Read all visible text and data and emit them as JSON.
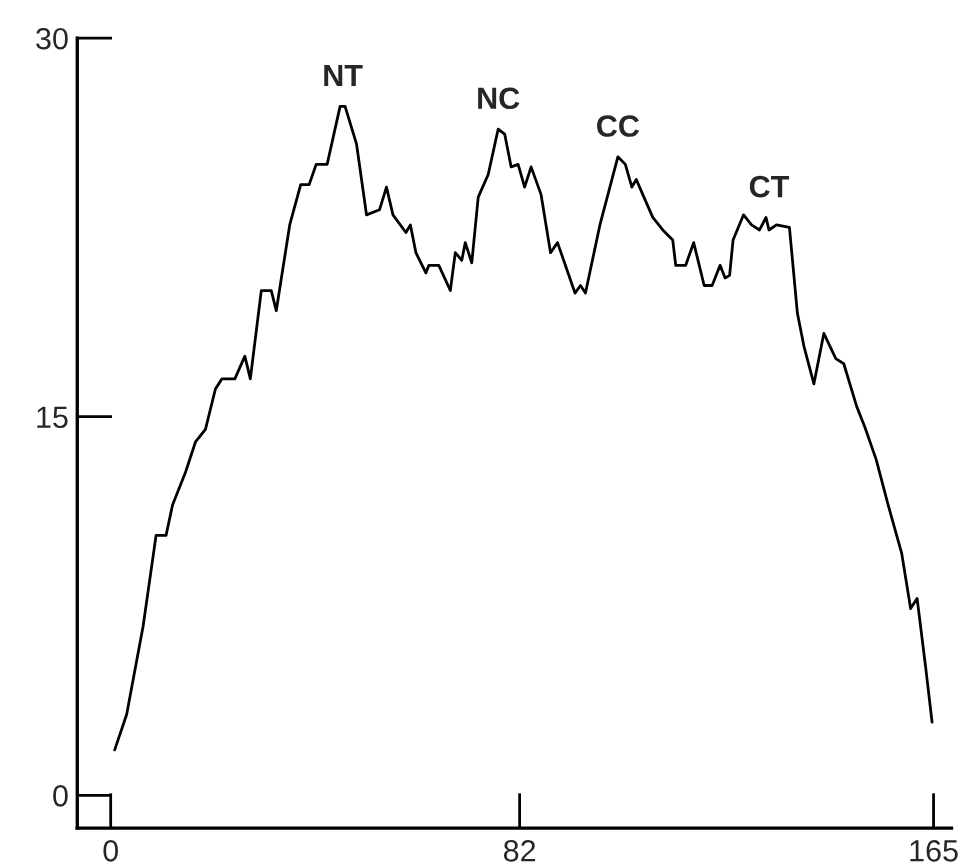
{
  "chart_data": {
    "type": "line",
    "x": [
      0.8,
      3.2,
      6.5,
      9.1,
      11.1,
      12.4,
      15,
      17,
      19,
      21,
      22.3,
      24.9,
      26.9,
      28,
      30.2,
      32.2,
      33.2,
      35.9,
      38.1,
      39.8,
      41.2,
      43.4,
      46,
      47,
      49.3,
      51.3,
      53.9,
      55.3,
      56.6,
      59.2,
      60.1,
      61.2,
      63.2,
      63.8,
      65.8,
      68.1,
      69.1,
      70.4,
      71.1,
      72.4,
      73.7,
      75.7,
      77.7,
      79,
      80.3,
      81.7,
      83,
      84.3,
      86.3,
      88.2,
      89.6,
      93.1,
      94.2,
      95.2,
      98.1,
      101.7,
      103.2,
      104.5,
      105.4,
      106.7,
      108.7,
      110.7,
      112.7,
      113.3,
      115.3,
      116.9,
      119,
      120.6,
      122.2,
      123.2,
      124.1,
      124.8,
      126.9,
      128.5,
      130.1,
      131.4,
      132,
      133.5,
      136.1,
      137.7,
      139,
      141,
      143,
      145.4,
      147,
      149.6,
      151.2,
      153.5,
      155.9,
      158.6,
      160.4,
      161.7,
      163.4,
      164.7
    ],
    "series": [
      {
        "color": "#000000",
        "values": [
          1.8,
          3.2,
          6.7,
          10.3,
          10.3,
          11.5,
          12.8,
          14,
          14.5,
          16.1,
          16.5,
          16.5,
          17.4,
          16.5,
          20,
          20,
          19.2,
          22.6,
          24.2,
          24.2,
          25,
          25,
          27.3,
          27.3,
          25.8,
          23,
          23.2,
          24.1,
          23,
          22.3,
          22.6,
          21.5,
          20.7,
          21,
          21,
          20,
          21.5,
          21.2,
          21.9,
          21.1,
          23.7,
          24.6,
          26.4,
          26.2,
          24.9,
          25,
          24.1,
          24.9,
          23.8,
          21.5,
          21.9,
          19.9,
          20.2,
          19.9,
          22.6,
          25.3,
          25,
          24.1,
          24.4,
          23.8,
          22.9,
          22.4,
          22,
          21,
          21,
          21.9,
          20.2,
          20.2,
          21,
          20.5,
          20.6,
          22,
          23,
          22.6,
          22.4,
          22.9,
          22.4,
          22.6,
          22.5,
          19.1,
          17.8,
          16.3,
          18.3,
          17.3,
          17.1,
          15.4,
          14.6,
          13.3,
          11.5,
          9.6,
          7.4,
          7.8,
          5.1,
          2.9
        ]
      }
    ],
    "xlim": [
      -6.7,
      168.6
    ],
    "ylim": [
      -1.3,
      30
    ],
    "xticks": [
      0,
      82,
      165
    ],
    "yticks": [
      0,
      15,
      30
    ],
    "grid": false,
    "legend": false,
    "marker": "none",
    "line_style": "solid",
    "annotations": [
      {
        "text": "NT",
        "x": 46.5,
        "y": 27.3
      },
      {
        "text": "NC",
        "x": 77.7,
        "y": 26.4
      },
      {
        "text": "CC",
        "x": 101.7,
        "y": 25.3
      },
      {
        "text": "CT",
        "x": 132,
        "y": 22.9
      }
    ]
  }
}
